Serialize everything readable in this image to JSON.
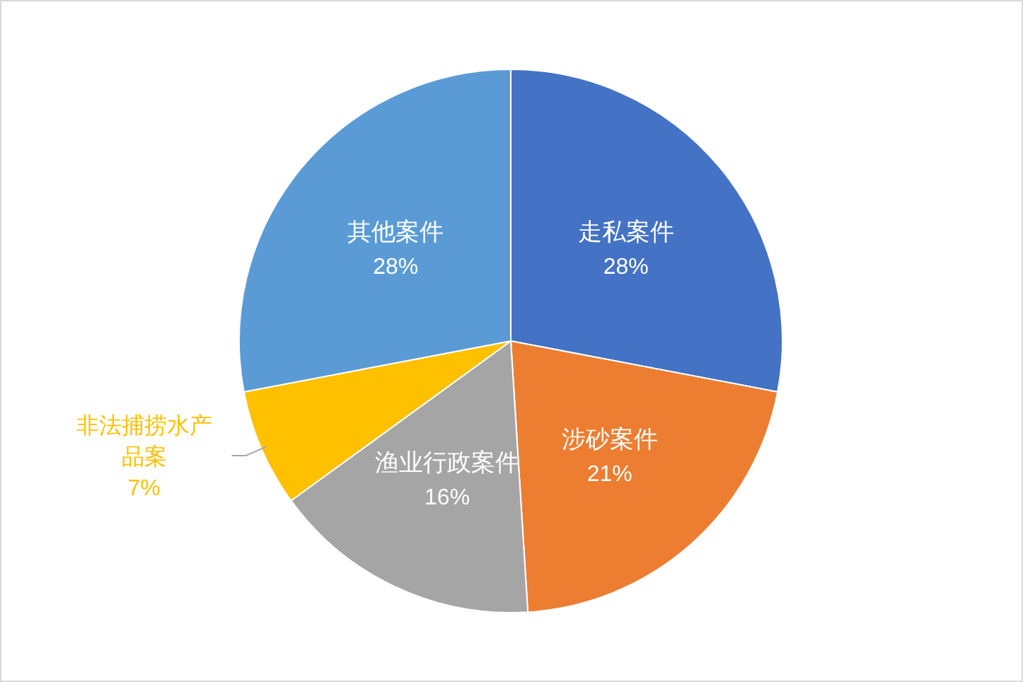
{
  "chart_data": {
    "type": "pie",
    "categories": [
      "走私案件",
      "涉砂案件",
      "渔业行政案件",
      "非法捕捞水产品案",
      "其他案件"
    ],
    "values": [
      28,
      21,
      16,
      7,
      28
    ],
    "colors": [
      "#4472c4",
      "#ed7d31",
      "#a5a5a5",
      "#ffc000",
      "#5b9bd5"
    ],
    "value_labels": [
      "28%",
      "21%",
      "16%",
      "7%",
      "28%"
    ]
  }
}
